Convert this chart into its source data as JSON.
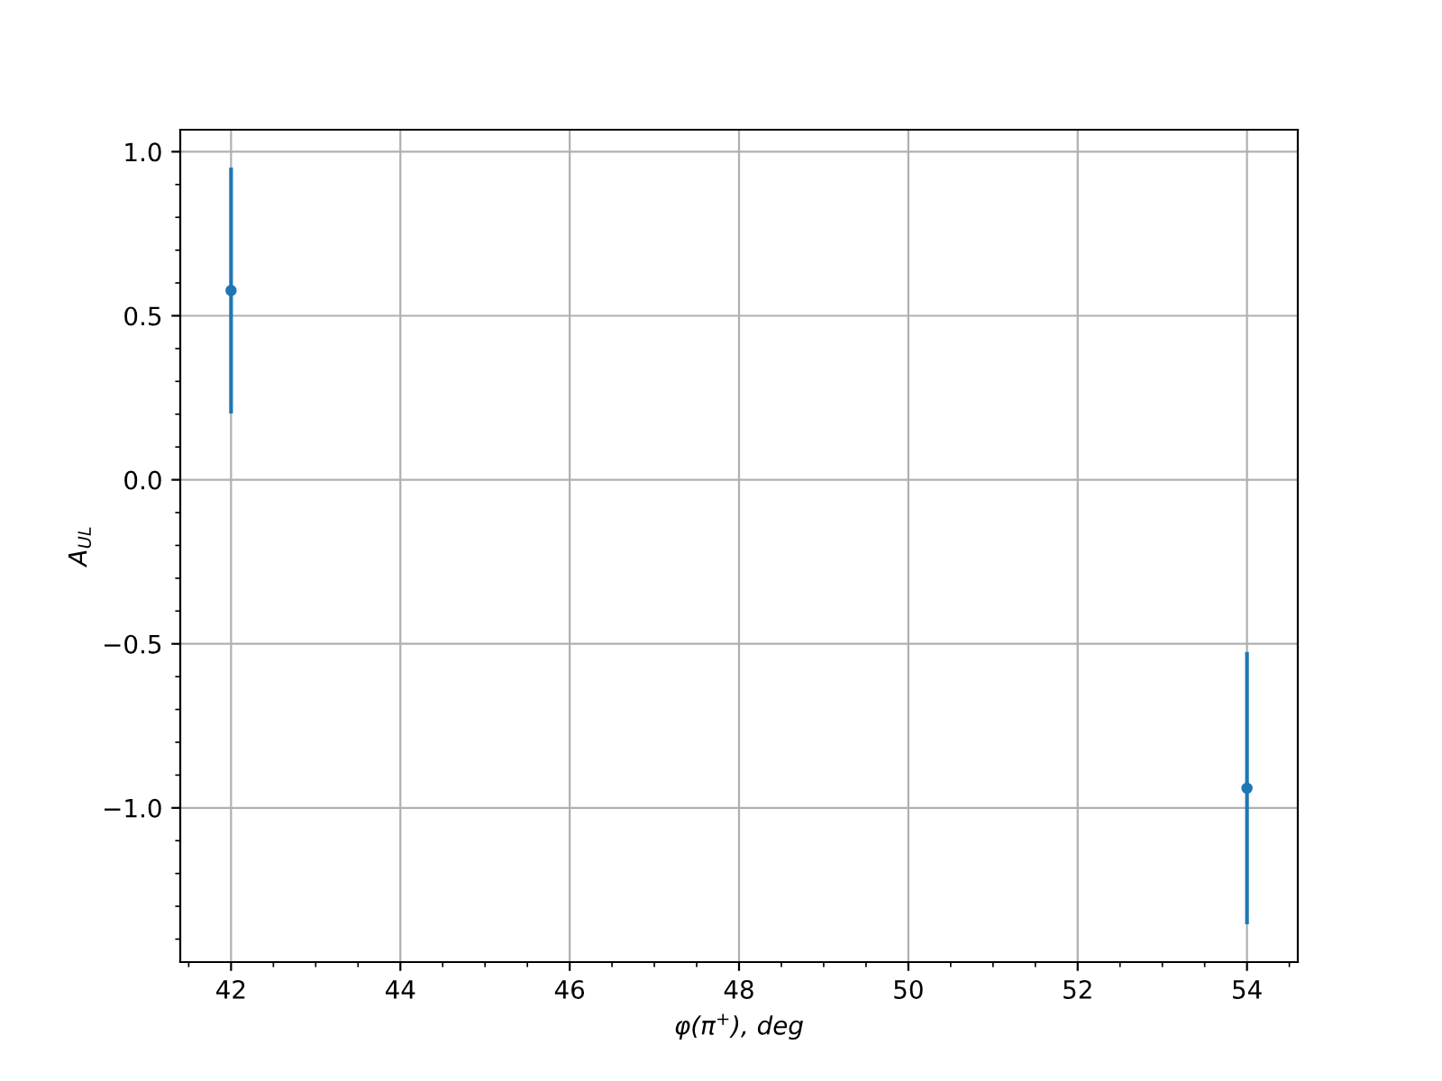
{
  "chart_data": {
    "type": "scatter",
    "xlabel": "φ(π$^{+}$), deg",
    "ylabel": "A$_{UL}$",
    "x": [
      42,
      54
    ],
    "series": [
      {
        "color": "#1f77b4",
        "values": [
          0.577,
          -0.94
        ],
        "errors": [
          0.375,
          0.415
        ]
      }
    ],
    "marker": "circle",
    "xlim": [
      41.4,
      54.6
    ],
    "ylim": [
      -1.47,
      1.067
    ],
    "xticks": [
      42,
      44,
      46,
      48,
      50,
      52,
      54
    ],
    "yticks": [
      {
        "value": -1.0,
        "label": "−1.0"
      },
      {
        "value": -0.5,
        "label": "−0.5"
      },
      {
        "value": 0.0,
        "label": "0.0"
      },
      {
        "value": 0.5,
        "label": "0.5"
      },
      {
        "value": 1.0,
        "label": "1.0"
      }
    ],
    "grid": true
  }
}
